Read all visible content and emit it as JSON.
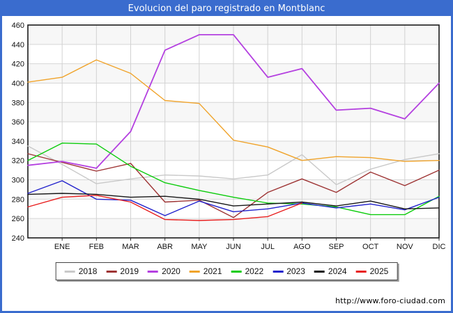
{
  "window": {
    "title": "Evolucion del paro registrado en Montblanc"
  },
  "footer": {
    "url": "http://www.foro-ciudad.com"
  },
  "chart_data": {
    "type": "line",
    "title": "Evolucion del paro registrado en Montblanc",
    "x_tick_labels": [
      "ENE",
      "FEB",
      "MAR",
      "ABR",
      "MAY",
      "JUN",
      "JUL",
      "AGO",
      "SEP",
      "OCT",
      "NOV",
      "DIC"
    ],
    "y_ticks": [
      460,
      440,
      420,
      400,
      380,
      360,
      340,
      320,
      300,
      280,
      260,
      240
    ],
    "ylim": [
      240,
      460
    ],
    "grid": true,
    "legend_position": "bottom",
    "note": "13 points per full series: index 0 sits on the left axis (pre-ENE start), indices 1-12 on the month gridlines. 2025 series ends at AGO.",
    "series": [
      {
        "name": "2018",
        "color": "#c9c9c9",
        "values": [
          335,
          316,
          296,
          301,
          305,
          304,
          301,
          305,
          326,
          295,
          311,
          321,
          327
        ]
      },
      {
        "name": "2019",
        "color": "#9e3434",
        "values": [
          327,
          318,
          309,
          317,
          277,
          279,
          261,
          287,
          301,
          287,
          308,
          294,
          310
        ]
      },
      {
        "name": "2020",
        "color": "#b440e0",
        "values": [
          315,
          319,
          312,
          350,
          434,
          450,
          450,
          406,
          415,
          372,
          374,
          363,
          400
        ]
      },
      {
        "name": "2021",
        "color": "#f0a32a",
        "values": [
          401,
          406,
          424,
          410,
          382,
          379,
          341,
          334,
          320,
          324,
          323,
          319,
          320
        ]
      },
      {
        "name": "2022",
        "color": "#0ccc0c",
        "values": [
          320,
          338,
          337,
          314,
          297,
          289,
          282,
          276,
          275,
          272,
          264,
          264,
          283
        ]
      },
      {
        "name": "2023",
        "color": "#2222cc",
        "values": [
          286,
          299,
          280,
          279,
          263,
          278,
          267,
          270,
          276,
          271,
          275,
          269,
          282
        ]
      },
      {
        "name": "2024",
        "color": "#161616",
        "values": [
          285,
          286,
          285,
          282,
          283,
          280,
          273,
          275,
          277,
          273,
          278,
          270,
          271
        ]
      },
      {
        "name": "2025",
        "color": "#e81e1e",
        "values": [
          272,
          282,
          284,
          277,
          259,
          258,
          259,
          262,
          276
        ]
      }
    ]
  }
}
